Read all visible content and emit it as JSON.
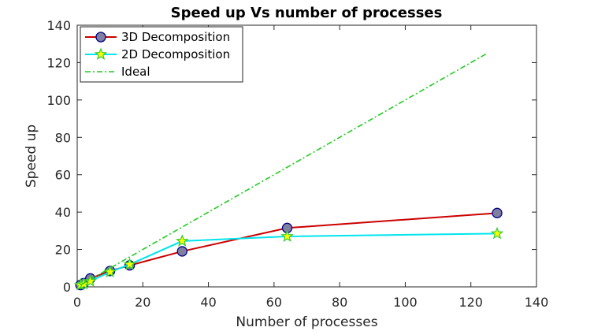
{
  "chart_data": {
    "type": "line",
    "title": "Speed up Vs number of processes",
    "xlabel": "Number of processes",
    "ylabel": "Speed up",
    "xlim": [
      0,
      140
    ],
    "ylim": [
      0,
      140
    ],
    "xticks": [
      0,
      20,
      40,
      60,
      80,
      100,
      120,
      140
    ],
    "yticks": [
      0,
      20,
      40,
      60,
      80,
      100,
      120,
      140
    ],
    "grid": false,
    "legend_position": "top-left",
    "series": [
      {
        "name": "3D Decomposition",
        "x": [
          1,
          2,
          4,
          10,
          16,
          32,
          64,
          128
        ],
        "y": [
          1,
          2,
          4.5,
          8.5,
          11.5,
          19,
          31.5,
          39.5
        ],
        "color": "#cc0000",
        "marker": "circle",
        "marker_fill": "#7f7f9f",
        "marker_edge": "#00008b",
        "line_style": "solid"
      },
      {
        "name": "2D Decomposition",
        "x": [
          1,
          2,
          4,
          10,
          16,
          32,
          64,
          128
        ],
        "y": [
          1,
          1.5,
          3,
          8,
          12,
          24.5,
          27,
          28.5
        ],
        "color": "#00e5ee",
        "marker": "star",
        "marker_fill": "#ffff00",
        "marker_edge": "#32cd32",
        "line_style": "solid"
      },
      {
        "name": "Ideal",
        "x": [
          1,
          125
        ],
        "y": [
          1,
          125
        ],
        "color": "#22cc22",
        "marker": "none",
        "line_style": "dashdot"
      }
    ]
  }
}
